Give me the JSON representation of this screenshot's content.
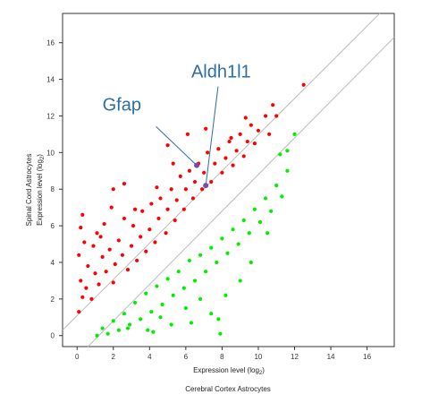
{
  "chart_data": {
    "type": "scatter",
    "title": "",
    "xlabel": "Expression level (log",
    "xlabel_sub": "2",
    "xlabel_close": ")",
    "xlabel2": "Cerebral Cortex Astrocytes",
    "ylabel_top": "Spinal Cord Astrocytes",
    "ylabel": "Expression level (log",
    "ylabel_sub": "2",
    "ylabel_close": ")",
    "xlim": [
      -0.8,
      17.5
    ],
    "ylim": [
      -0.6,
      17.6
    ],
    "x_ticks": [
      "0",
      "2",
      "4",
      "6",
      "8",
      "10",
      "12",
      "14",
      "16"
    ],
    "y_ticks": [
      "0",
      "2",
      "4",
      "6",
      "8",
      "10",
      "12",
      "14",
      "16"
    ],
    "grid": false,
    "reference_lines": [
      {
        "name": "upper",
        "points": [
          [
            -0.8,
            0.3
          ],
          [
            16.7,
            17.6
          ]
        ]
      },
      {
        "name": "lower",
        "points": [
          [
            0.6,
            -0.6
          ],
          [
            17.5,
            16.3
          ]
        ]
      }
    ],
    "colors": {
      "enriched_spinal": "#ff0000",
      "enriched_cortex": "#00ee00",
      "line": "#bbbbbb",
      "annotation": "#2e6ea6",
      "highlight": "#7a4aa8"
    },
    "series": [
      {
        "key": "spinal",
        "points": [
          [
            0.1,
            1.3
          ],
          [
            0.3,
            2.1
          ],
          [
            0.2,
            3.0
          ],
          [
            0.5,
            2.6
          ],
          [
            0.1,
            4.4
          ],
          [
            0.2,
            5.9
          ],
          [
            0.3,
            6.6
          ],
          [
            0.6,
            3.8
          ],
          [
            0.8,
            2.0
          ],
          [
            1.0,
            3.4
          ],
          [
            0.9,
            4.9
          ],
          [
            1.2,
            2.8
          ],
          [
            1.4,
            4.3
          ],
          [
            1.1,
            5.6
          ],
          [
            1.6,
            3.5
          ],
          [
            1.8,
            4.7
          ],
          [
            1.5,
            6.1
          ],
          [
            2.0,
            2.9
          ],
          [
            2.1,
            3.9
          ],
          [
            2.3,
            5.2
          ],
          [
            2.0,
            8.0
          ],
          [
            2.5,
            4.4
          ],
          [
            2.6,
            6.4
          ],
          [
            2.8,
            3.6
          ],
          [
            3.0,
            4.9
          ],
          [
            3.1,
            6.0
          ],
          [
            3.3,
            4.1
          ],
          [
            3.5,
            5.4
          ],
          [
            3.6,
            6.8
          ],
          [
            3.8,
            4.6
          ],
          [
            4.0,
            5.8
          ],
          [
            4.1,
            7.2
          ],
          [
            4.3,
            5.1
          ],
          [
            4.5,
            6.4
          ],
          [
            4.6,
            7.5
          ],
          [
            4.9,
            5.6
          ],
          [
            5.0,
            6.9
          ],
          [
            5.2,
            8.0
          ],
          [
            5.4,
            6.3
          ],
          [
            5.5,
            7.4
          ],
          [
            5.7,
            8.7
          ],
          [
            5.9,
            6.9
          ],
          [
            6.0,
            8.0
          ],
          [
            6.2,
            9.0
          ],
          [
            6.4,
            7.5
          ],
          [
            6.5,
            8.4
          ],
          [
            6.7,
            9.4
          ],
          [
            6.9,
            8.0
          ],
          [
            7.0,
            8.9
          ],
          [
            7.2,
            10.0
          ],
          [
            7.4,
            8.4
          ],
          [
            7.6,
            9.4
          ],
          [
            7.8,
            10.2
          ],
          [
            8.0,
            8.9
          ],
          [
            8.2,
            9.7
          ],
          [
            8.4,
            10.6
          ],
          [
            8.6,
            9.3
          ],
          [
            8.8,
            10.1
          ],
          [
            9.0,
            11.0
          ],
          [
            9.2,
            9.8
          ],
          [
            9.4,
            10.6
          ],
          [
            9.6,
            11.5
          ],
          [
            9.8,
            10.5
          ],
          [
            10.0,
            11.2
          ],
          [
            10.4,
            12.0
          ],
          [
            10.6,
            11.0
          ],
          [
            10.8,
            12.6
          ],
          [
            11.0,
            12.0
          ],
          [
            12.5,
            13.7
          ],
          [
            5.3,
            9.4
          ],
          [
            6.1,
            11.0
          ],
          [
            4.4,
            8.1
          ],
          [
            3.2,
            6.9
          ],
          [
            1.3,
            5.4
          ],
          [
            0.4,
            5.1
          ],
          [
            1.9,
            7.0
          ],
          [
            2.6,
            8.3
          ],
          [
            5.0,
            10.4
          ],
          [
            7.1,
            11.3
          ],
          [
            8.5,
            10.8
          ],
          [
            9.3,
            11.9
          ],
          [
            6.6,
            9.3
          ]
        ]
      },
      {
        "key": "cortex",
        "points": [
          [
            1.1,
            0.0
          ],
          [
            1.4,
            0.4
          ],
          [
            1.7,
            0.1
          ],
          [
            2.0,
            0.8
          ],
          [
            2.3,
            0.3
          ],
          [
            2.6,
            1.2
          ],
          [
            2.9,
            0.6
          ],
          [
            3.2,
            1.8
          ],
          [
            3.5,
            0.9
          ],
          [
            3.8,
            2.3
          ],
          [
            4.1,
            1.3
          ],
          [
            4.4,
            2.7
          ],
          [
            4.7,
            1.7
          ],
          [
            5.0,
            3.1
          ],
          [
            5.3,
            2.2
          ],
          [
            5.6,
            3.5
          ],
          [
            5.9,
            2.6
          ],
          [
            6.2,
            4.1
          ],
          [
            6.5,
            3.0
          ],
          [
            6.8,
            4.4
          ],
          [
            7.1,
            3.5
          ],
          [
            7.4,
            4.8
          ],
          [
            7.7,
            4.0
          ],
          [
            8.0,
            5.3
          ],
          [
            8.3,
            4.5
          ],
          [
            8.6,
            5.8
          ],
          [
            8.9,
            5.0
          ],
          [
            9.2,
            6.3
          ],
          [
            9.5,
            5.6
          ],
          [
            9.8,
            6.9
          ],
          [
            10.1,
            6.2
          ],
          [
            10.4,
            7.5
          ],
          [
            10.7,
            6.8
          ],
          [
            11.0,
            8.2
          ],
          [
            11.3,
            7.6
          ],
          [
            11.6,
            9.0
          ],
          [
            12.0,
            11.0
          ],
          [
            3.9,
            0.3
          ],
          [
            5.2,
            0.6
          ],
          [
            6.3,
            0.7
          ],
          [
            7.4,
            1.2
          ],
          [
            7.8,
            0.9
          ],
          [
            8.2,
            2.2
          ],
          [
            9.0,
            3.0
          ],
          [
            9.6,
            4.0
          ],
          [
            10.5,
            5.6
          ],
          [
            11.2,
            9.9
          ],
          [
            11.6,
            10.1
          ],
          [
            4.6,
            1.0
          ],
          [
            6.0,
            1.5
          ],
          [
            6.8,
            2.0
          ],
          [
            4.2,
            0.2
          ],
          [
            2.8,
            0.4
          ],
          [
            7.9,
            0.1
          ]
        ]
      }
    ],
    "annotations": [
      {
        "label": "Gfap",
        "text_at": [
          1.4,
          12.3
        ],
        "point": [
          6.6,
          9.3
        ]
      },
      {
        "label": "Aldh1l1",
        "text_at": [
          6.3,
          14.1
        ],
        "point": [
          7.1,
          8.2
        ]
      }
    ]
  }
}
